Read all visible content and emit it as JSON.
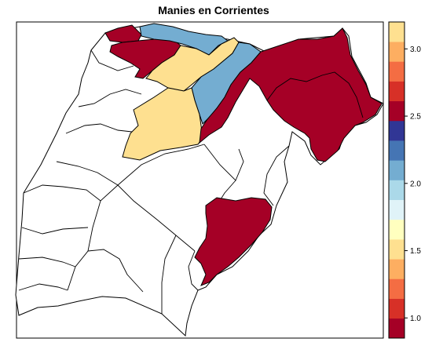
{
  "title": "Manies en Corrientes",
  "legend": {
    "ticks": [
      "1.0",
      "1.5",
      "2.0",
      "2.5",
      "3.0"
    ],
    "colors_bottom_to_top": [
      "#A50026",
      "#D73027",
      "#F46D43",
      "#FDAE61",
      "#FEE090",
      "#FFFFBF",
      "#E0F3F8",
      "#ABD9E9",
      "#74ADD1",
      "#4575B4",
      "#313695",
      "#A50026",
      "#D73027",
      "#F46D43",
      "#FDAE61",
      "#FEE090"
    ],
    "range": [
      0.85,
      3.2
    ]
  },
  "colors": {
    "value_1": "#A50026",
    "value_2": "#74ADD1",
    "value_3": "#FEE090",
    "no_data": "#FFFFFF",
    "border": "#000000"
  }
}
